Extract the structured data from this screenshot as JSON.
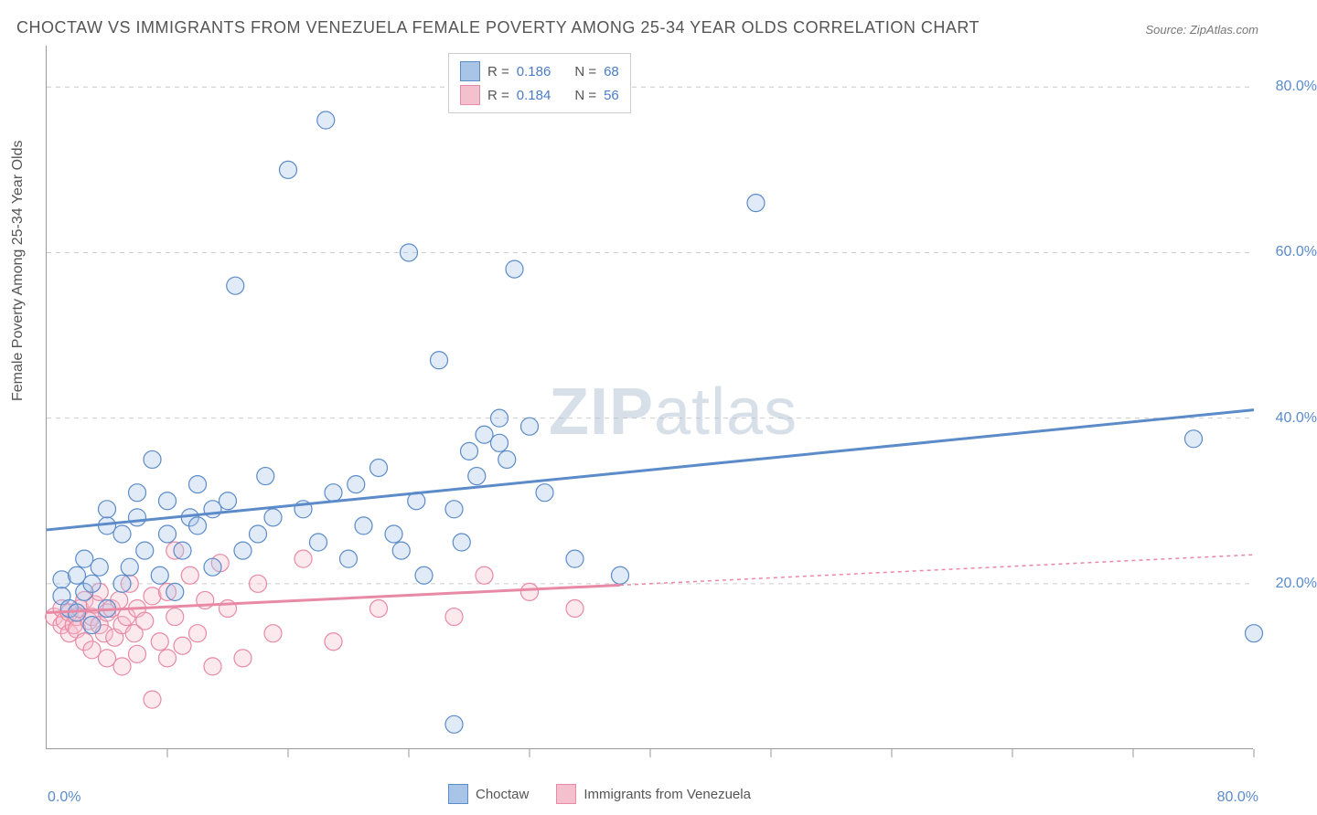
{
  "title": "CHOCTAW VS IMMIGRANTS FROM VENEZUELA FEMALE POVERTY AMONG 25-34 YEAR OLDS CORRELATION CHART",
  "source": "Source: ZipAtlas.com",
  "ylabel": "Female Poverty Among 25-34 Year Olds",
  "watermark_a": "ZIP",
  "watermark_b": "atlas",
  "chart": {
    "type": "scatter",
    "background_color": "#ffffff",
    "grid_color": "#cccccc",
    "axis_color": "#999999",
    "xlim": [
      0,
      80
    ],
    "ylim": [
      0,
      85
    ],
    "x_tick_min_label": "0.0%",
    "x_tick_max_label": "80.0%",
    "y_ticks": [
      20,
      40,
      60,
      80
    ],
    "y_tick_labels": [
      "20.0%",
      "40.0%",
      "60.0%",
      "80.0%"
    ],
    "x_minor_ticks": [
      8,
      16,
      24,
      32,
      40,
      48,
      56,
      64,
      72,
      80
    ],
    "marker_radius": 9.5,
    "marker_stroke_width": 1.2,
    "marker_fill_opacity": 0.35,
    "trend_line_width": 3,
    "series": [
      {
        "name": "Choctaw",
        "color_fill": "#a8c5e8",
        "color_stroke": "#5b8bc9",
        "legend_r_label": "R =",
        "legend_r": "0.186",
        "legend_n_label": "N =",
        "legend_n": "68",
        "trend": {
          "x1": 0,
          "y1": 26.5,
          "x2": 80,
          "y2": 41,
          "dash": "none",
          "dash_from_x": null
        },
        "points": [
          [
            1,
            20.5
          ],
          [
            1,
            18.5
          ],
          [
            1.5,
            17
          ],
          [
            2,
            16.5
          ],
          [
            2,
            21
          ],
          [
            2.5,
            19
          ],
          [
            2.5,
            23
          ],
          [
            3,
            15
          ],
          [
            3,
            20
          ],
          [
            3.5,
            22
          ],
          [
            4,
            27
          ],
          [
            4,
            29
          ],
          [
            4,
            17
          ],
          [
            5,
            26
          ],
          [
            5,
            20
          ],
          [
            5.5,
            22
          ],
          [
            6,
            31
          ],
          [
            6,
            28
          ],
          [
            6.5,
            24
          ],
          [
            7,
            35
          ],
          [
            7.5,
            21
          ],
          [
            8,
            26
          ],
          [
            8,
            30
          ],
          [
            8.5,
            19
          ],
          [
            9,
            24
          ],
          [
            9.5,
            28
          ],
          [
            10,
            32
          ],
          [
            10,
            27
          ],
          [
            11,
            22
          ],
          [
            11,
            29
          ],
          [
            12,
            30
          ],
          [
            12.5,
            56
          ],
          [
            13,
            24
          ],
          [
            14,
            26
          ],
          [
            14.5,
            33
          ],
          [
            15,
            28
          ],
          [
            16,
            70
          ],
          [
            17,
            29
          ],
          [
            18,
            25
          ],
          [
            18.5,
            76
          ],
          [
            19,
            31
          ],
          [
            20,
            23
          ],
          [
            20.5,
            32
          ],
          [
            21,
            27
          ],
          [
            22,
            34
          ],
          [
            23,
            26
          ],
          [
            23.5,
            24
          ],
          [
            24,
            60
          ],
          [
            24.5,
            30
          ],
          [
            25,
            21
          ],
          [
            26,
            47
          ],
          [
            27,
            29
          ],
          [
            27.5,
            25
          ],
          [
            28,
            36
          ],
          [
            28.5,
            33
          ],
          [
            29,
            38
          ],
          [
            30,
            40
          ],
          [
            30,
            37
          ],
          [
            30.5,
            35
          ],
          [
            31,
            58
          ],
          [
            32,
            39
          ],
          [
            33,
            31
          ],
          [
            35,
            23
          ],
          [
            38,
            21
          ],
          [
            47,
            66
          ],
          [
            76,
            37.5
          ],
          [
            80,
            14
          ],
          [
            27,
            3
          ]
        ]
      },
      {
        "name": "Immigrants from Venezuela",
        "color_fill": "#f5c0cd",
        "color_stroke": "#e889a5",
        "legend_r_label": "R =",
        "legend_r": "0.184",
        "legend_n_label": "N =",
        "legend_n": "56",
        "trend": {
          "x1": 0,
          "y1": 16.5,
          "x2": 80,
          "y2": 23.5,
          "dash": "4,4",
          "dash_from_x": 38
        },
        "points": [
          [
            0.5,
            16
          ],
          [
            1,
            15
          ],
          [
            1,
            17
          ],
          [
            1.2,
            15.5
          ],
          [
            1.5,
            14
          ],
          [
            1.5,
            16.5
          ],
          [
            1.8,
            15
          ],
          [
            2,
            16
          ],
          [
            2,
            14.5
          ],
          [
            2.2,
            17
          ],
          [
            2.5,
            13
          ],
          [
            2.5,
            18
          ],
          [
            2.8,
            15.5
          ],
          [
            3,
            16
          ],
          [
            3,
            12
          ],
          [
            3.2,
            17.5
          ],
          [
            3.5,
            15
          ],
          [
            3.5,
            19
          ],
          [
            3.8,
            14
          ],
          [
            4,
            16.5
          ],
          [
            4,
            11
          ],
          [
            4.3,
            17
          ],
          [
            4.5,
            13.5
          ],
          [
            4.8,
            18
          ],
          [
            5,
            15
          ],
          [
            5,
            10
          ],
          [
            5.3,
            16
          ],
          [
            5.5,
            20
          ],
          [
            5.8,
            14
          ],
          [
            6,
            17
          ],
          [
            6,
            11.5
          ],
          [
            6.5,
            15.5
          ],
          [
            7,
            18.5
          ],
          [
            7,
            6
          ],
          [
            7.5,
            13
          ],
          [
            8,
            19
          ],
          [
            8,
            11
          ],
          [
            8.5,
            24
          ],
          [
            8.5,
            16
          ],
          [
            9,
            12.5
          ],
          [
            9.5,
            21
          ],
          [
            10,
            14
          ],
          [
            10.5,
            18
          ],
          [
            11,
            10
          ],
          [
            11.5,
            22.5
          ],
          [
            12,
            17
          ],
          [
            13,
            11
          ],
          [
            14,
            20
          ],
          [
            15,
            14
          ],
          [
            17,
            23
          ],
          [
            19,
            13
          ],
          [
            22,
            17
          ],
          [
            27,
            16
          ],
          [
            29,
            21
          ],
          [
            32,
            19
          ],
          [
            35,
            17
          ]
        ]
      }
    ]
  }
}
